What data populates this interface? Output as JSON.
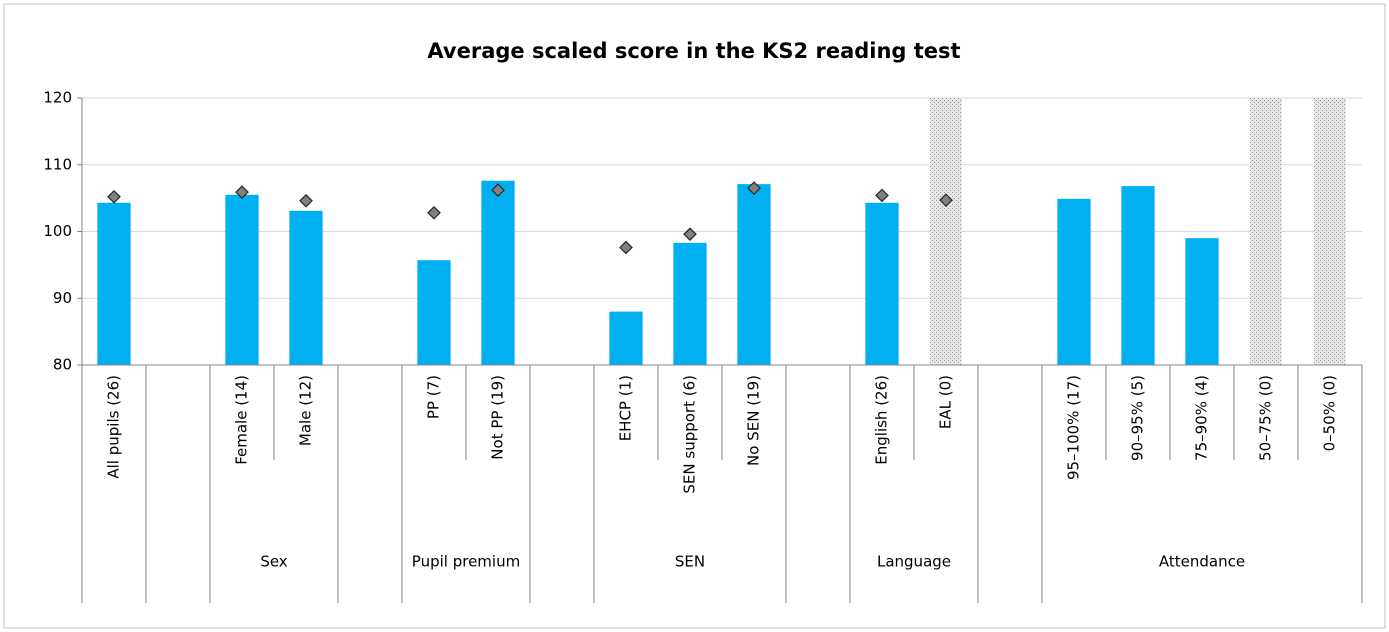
{
  "chart_data": {
    "type": "bar",
    "title": "Average scaled score in the KS2 reading test",
    "categories": [
      "All pupils (26)",
      null,
      "Female (14)",
      "Male (12)",
      null,
      "PP (7)",
      "Not PP (19)",
      null,
      "EHCP (1)",
      "SEN support (6)",
      "No SEN (19)",
      null,
      "English (26)",
      "EAL (0)",
      null,
      "95–100% (17)",
      "90–95% (5)",
      "75–90% (4)",
      "50–75% (0)",
      "0–50% (0)"
    ],
    "group_labels": [
      null,
      "Sex",
      "Pupil premium",
      "SEN",
      "Language",
      "Attendance"
    ],
    "series": [
      {
        "marker": "bar",
        "color": "#00b0f0",
        "values": [
          104.3,
          null,
          105.5,
          103.1,
          null,
          95.7,
          107.6,
          null,
          88.0,
          98.3,
          107.1,
          null,
          104.3,
          null,
          null,
          104.9,
          106.8,
          99.0,
          null,
          null
        ]
      },
      {
        "marker": "diamond",
        "color": "#808080",
        "values": [
          105.2,
          null,
          105.9,
          104.6,
          null,
          102.8,
          106.2,
          null,
          97.6,
          99.6,
          106.5,
          null,
          105.4,
          104.7,
          null,
          null,
          null,
          null,
          null,
          null
        ]
      }
    ],
    "ylim": [
      80,
      120
    ],
    "yticks": [
      80,
      90,
      100,
      110,
      120
    ],
    "grid": true
  }
}
